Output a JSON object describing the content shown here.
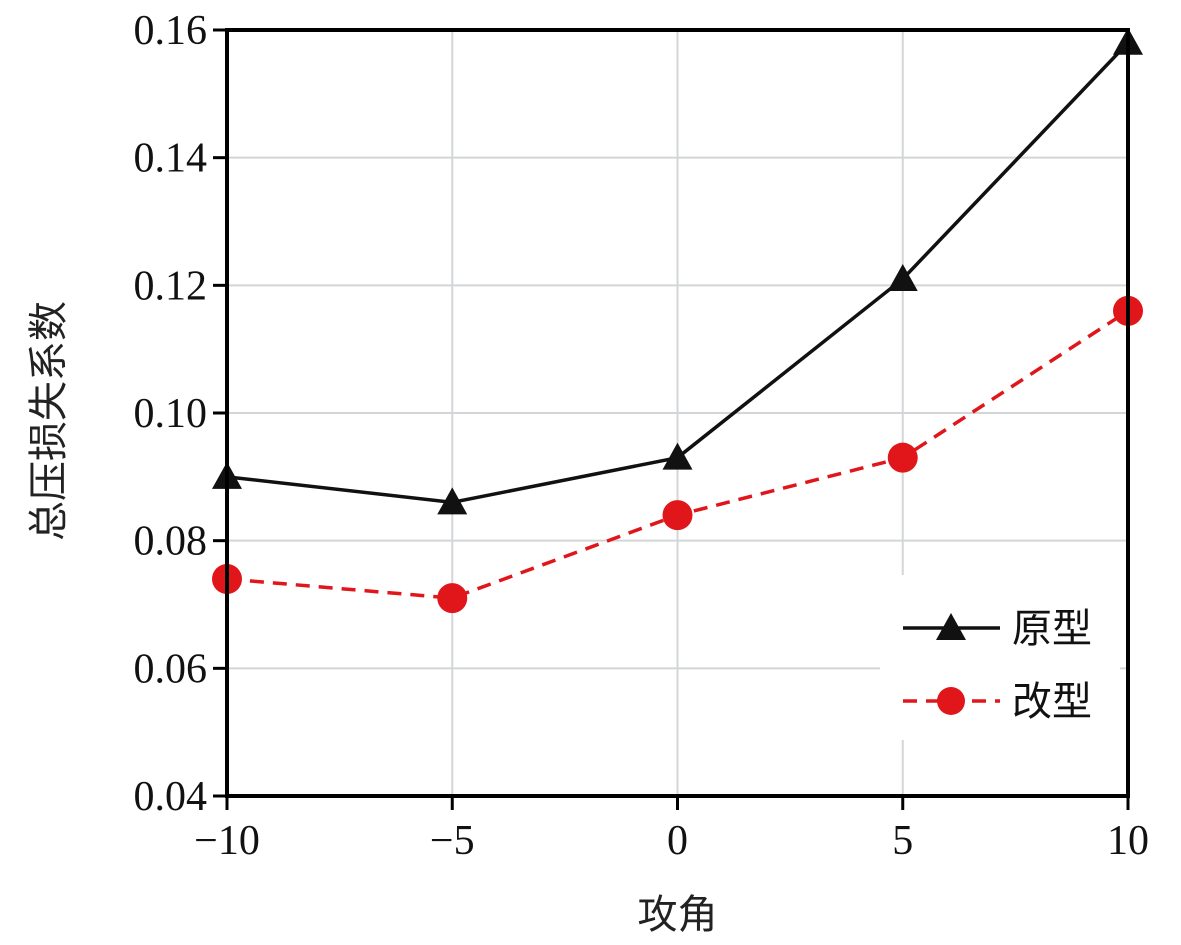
{
  "chart_data": {
    "type": "line",
    "title": "",
    "xlabel": "攻角",
    "ylabel": "总压损失系数",
    "x": [
      -10,
      -5,
      0,
      5,
      10
    ],
    "xlim": [
      -10,
      10
    ],
    "ylim": [
      0.04,
      0.16
    ],
    "x_ticks": [
      {
        "value": -10,
        "label": "−10"
      },
      {
        "value": -5,
        "label": "−5"
      },
      {
        "value": 0,
        "label": "0"
      },
      {
        "value": 5,
        "label": "5"
      },
      {
        "value": 10,
        "label": "10"
      }
    ],
    "y_ticks": [
      {
        "value": 0.04,
        "label": "0.04"
      },
      {
        "value": 0.06,
        "label": "0.06"
      },
      {
        "value": 0.08,
        "label": "0.08"
      },
      {
        "value": 0.1,
        "label": "0.10"
      },
      {
        "value": 0.12,
        "label": "0.12"
      },
      {
        "value": 0.14,
        "label": "0.14"
      },
      {
        "value": 0.16,
        "label": "0.16"
      }
    ],
    "grid": true,
    "legend_position": "bottom-right",
    "series": [
      {
        "name": "原型",
        "values": [
          0.09,
          0.086,
          0.093,
          0.121,
          0.158
        ],
        "color": "#111111",
        "line_style": "solid",
        "marker": "triangle"
      },
      {
        "name": "改型",
        "values": [
          0.074,
          0.071,
          0.084,
          0.093,
          0.116
        ],
        "color": "#e0161b",
        "line_style": "dashed",
        "marker": "circle"
      }
    ]
  }
}
